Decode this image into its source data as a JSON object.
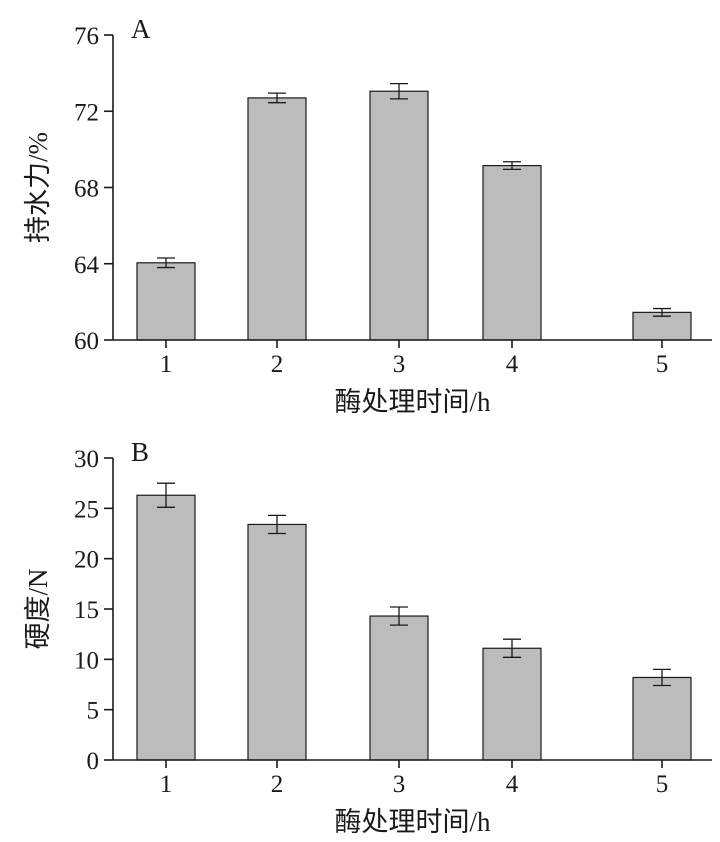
{
  "chart_data": [
    {
      "type": "bar",
      "panel_label": "A",
      "categories": [
        "1",
        "2",
        "3",
        "4",
        "5"
      ],
      "values": [
        64.05,
        72.7,
        73.05,
        69.15,
        61.45
      ],
      "errors": [
        0.25,
        0.25,
        0.4,
        0.2,
        0.2
      ],
      "xlabel": "酶处理时间/h",
      "ylabel": "持水力/%",
      "ylim": [
        60,
        76
      ],
      "yticks": [
        60,
        64,
        68,
        72,
        76
      ],
      "grid": false,
      "bar_color": "#bcbcbc"
    },
    {
      "type": "bar",
      "panel_label": "B",
      "categories": [
        "1",
        "2",
        "3",
        "4",
        "5"
      ],
      "values": [
        26.3,
        23.4,
        14.3,
        11.1,
        8.2
      ],
      "errors": [
        1.2,
        0.9,
        0.9,
        0.9,
        0.8
      ],
      "xlabel": "酶处理时间/h",
      "ylabel": "硬度/N",
      "ylim": [
        0,
        30
      ],
      "yticks": [
        0,
        5,
        10,
        15,
        20,
        25,
        30
      ],
      "grid": false,
      "bar_color": "#bcbcbc"
    }
  ]
}
